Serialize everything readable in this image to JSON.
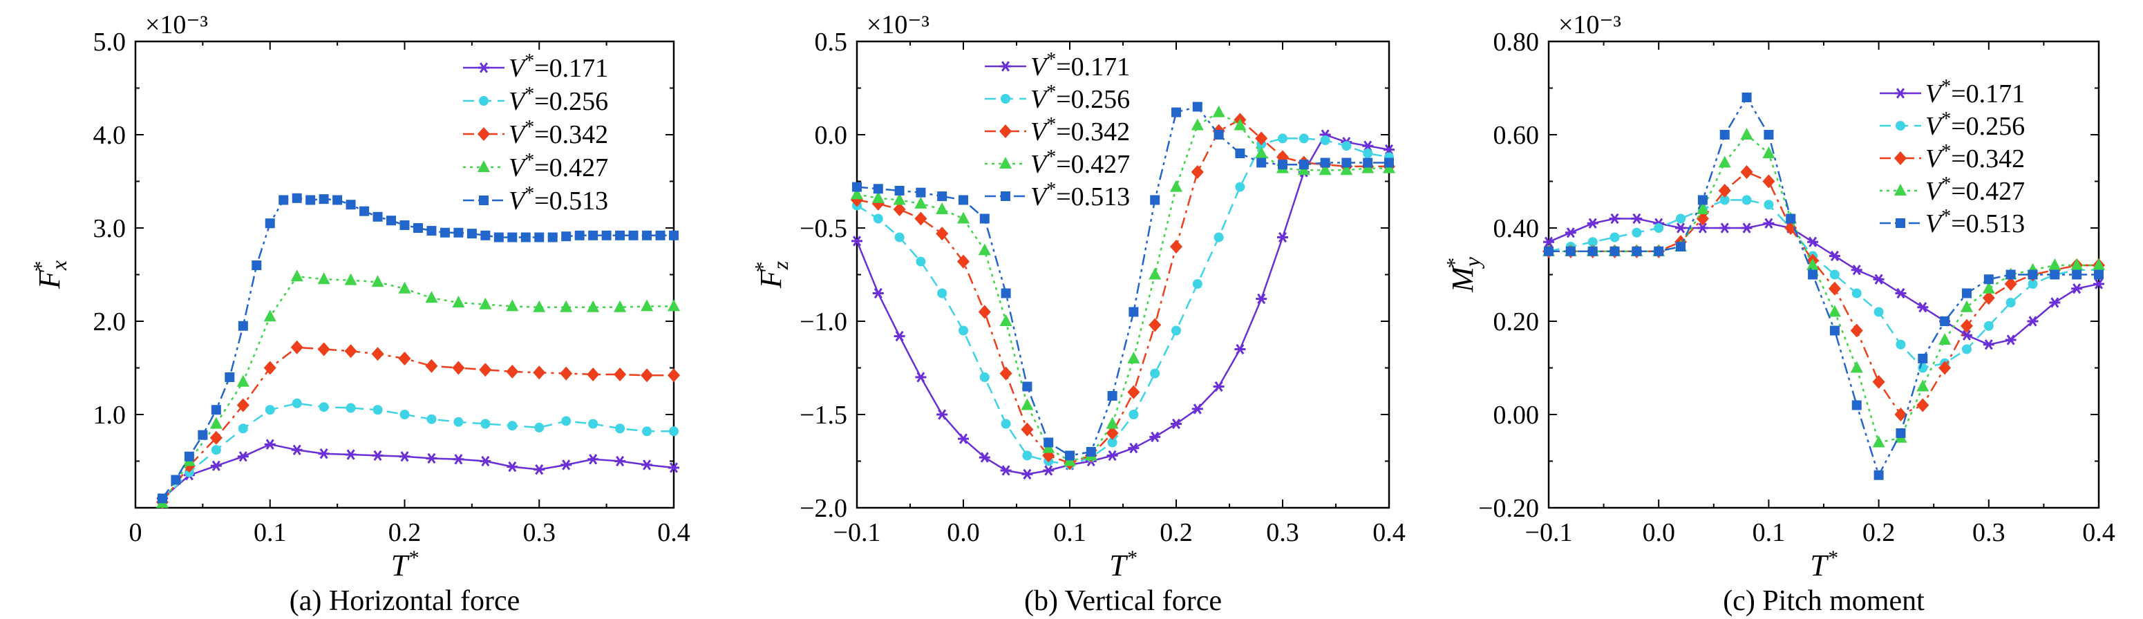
{
  "colors": {
    "V0171": "#6a2fd6",
    "V0256": "#3fd3e6",
    "V0342": "#ee3f1c",
    "V0427": "#40d44a",
    "V0513": "#2266cc"
  },
  "chart_data": [
    {
      "type": "line",
      "caption": "(a) Horizontal force",
      "ylabel": "F_x*",
      "xlabel": "T*",
      "exponent_label": "×10⁻³",
      "xlim": [
        0,
        0.4
      ],
      "ylim": [
        0,
        5.0
      ],
      "xticks": [
        "0",
        "0.1",
        "0.2",
        "0.3",
        "0.4"
      ],
      "yticks": [
        "1.0",
        "2.0",
        "3.0",
        "4.0",
        "5.0"
      ],
      "legend_position": "top-right",
      "series": [
        {
          "name": "V*=0.171",
          "marker": "star",
          "style": "solid",
          "x": [
            0.02,
            0.04,
            0.06,
            0.08,
            0.1,
            0.12,
            0.14,
            0.16,
            0.18,
            0.2,
            0.22,
            0.24,
            0.26,
            0.28,
            0.3,
            0.32,
            0.34,
            0.36,
            0.38,
            0.4
          ],
          "y": [
            0.1,
            0.35,
            0.45,
            0.55,
            0.68,
            0.62,
            0.58,
            0.57,
            0.56,
            0.55,
            0.53,
            0.52,
            0.5,
            0.44,
            0.41,
            0.46,
            0.52,
            0.5,
            0.46,
            0.43
          ]
        },
        {
          "name": "V*=0.256",
          "marker": "circle",
          "style": "dash",
          "x": [
            0.02,
            0.04,
            0.06,
            0.08,
            0.1,
            0.12,
            0.14,
            0.16,
            0.18,
            0.2,
            0.22,
            0.24,
            0.26,
            0.28,
            0.3,
            0.32,
            0.34,
            0.36,
            0.38,
            0.4
          ],
          "y": [
            0.08,
            0.38,
            0.62,
            0.85,
            1.05,
            1.12,
            1.08,
            1.07,
            1.05,
            1.0,
            0.95,
            0.92,
            0.9,
            0.88,
            0.86,
            0.93,
            0.9,
            0.85,
            0.82,
            0.82
          ]
        },
        {
          "name": "V*=0.342",
          "marker": "diamond",
          "style": "dashdot",
          "x": [
            0.02,
            0.04,
            0.06,
            0.08,
            0.1,
            0.12,
            0.14,
            0.16,
            0.18,
            0.2,
            0.22,
            0.24,
            0.26,
            0.28,
            0.3,
            0.32,
            0.34,
            0.36,
            0.38,
            0.4
          ],
          "y": [
            0.06,
            0.45,
            0.75,
            1.1,
            1.5,
            1.72,
            1.7,
            1.68,
            1.65,
            1.6,
            1.52,
            1.5,
            1.48,
            1.46,
            1.45,
            1.44,
            1.43,
            1.43,
            1.42,
            1.42
          ]
        },
        {
          "name": "V*=0.427",
          "marker": "triangle",
          "style": "dot",
          "x": [
            0.02,
            0.04,
            0.06,
            0.08,
            0.1,
            0.12,
            0.14,
            0.16,
            0.18,
            0.2,
            0.22,
            0.24,
            0.26,
            0.28,
            0.3,
            0.32,
            0.34,
            0.36,
            0.38,
            0.4
          ],
          "y": [
            0.05,
            0.5,
            0.9,
            1.35,
            2.05,
            2.48,
            2.45,
            2.44,
            2.42,
            2.35,
            2.25,
            2.2,
            2.18,
            2.16,
            2.15,
            2.15,
            2.15,
            2.15,
            2.16,
            2.16
          ]
        },
        {
          "name": "V*=0.513",
          "marker": "square",
          "style": "dashdotdot",
          "x": [
            0.02,
            0.03,
            0.04,
            0.05,
            0.06,
            0.07,
            0.08,
            0.09,
            0.1,
            0.11,
            0.12,
            0.13,
            0.14,
            0.15,
            0.16,
            0.17,
            0.18,
            0.19,
            0.2,
            0.21,
            0.22,
            0.23,
            0.24,
            0.25,
            0.26,
            0.27,
            0.28,
            0.29,
            0.3,
            0.31,
            0.32,
            0.33,
            0.34,
            0.35,
            0.36,
            0.37,
            0.38,
            0.39,
            0.4
          ],
          "y": [
            0.1,
            0.3,
            0.55,
            0.78,
            1.05,
            1.4,
            1.95,
            2.6,
            3.05,
            3.3,
            3.32,
            3.3,
            3.31,
            3.3,
            3.25,
            3.18,
            3.12,
            3.08,
            3.03,
            3.0,
            2.97,
            2.95,
            2.95,
            2.94,
            2.92,
            2.9,
            2.9,
            2.9,
            2.9,
            2.9,
            2.91,
            2.92,
            2.92,
            2.92,
            2.92,
            2.92,
            2.92,
            2.92,
            2.92
          ]
        }
      ]
    },
    {
      "type": "line",
      "caption": "(b) Vertical force",
      "ylabel": "F_z*",
      "xlabel": "T*",
      "exponent_label": "×10⁻³",
      "xlim": [
        -0.1,
        0.4
      ],
      "ylim": [
        -2.0,
        0.5
      ],
      "xticks": [
        "−0.1",
        "0.0",
        "0.1",
        "0.2",
        "0.3",
        "0.4"
      ],
      "yticks": [
        "−2.0",
        "−1.5",
        "−1.0",
        "−0.5",
        "0.0",
        "0.5"
      ],
      "legend_position": "top-left",
      "series": [
        {
          "name": "V*=0.171",
          "marker": "star",
          "style": "solid",
          "x": [
            -0.1,
            -0.08,
            -0.06,
            -0.04,
            -0.02,
            0.0,
            0.02,
            0.04,
            0.06,
            0.08,
            0.1,
            0.12,
            0.14,
            0.16,
            0.18,
            0.2,
            0.22,
            0.24,
            0.26,
            0.28,
            0.3,
            0.32,
            0.34,
            0.36,
            0.38,
            0.4
          ],
          "y": [
            -0.57,
            -0.85,
            -1.08,
            -1.3,
            -1.5,
            -1.63,
            -1.73,
            -1.8,
            -1.82,
            -1.8,
            -1.77,
            -1.75,
            -1.72,
            -1.68,
            -1.62,
            -1.55,
            -1.47,
            -1.35,
            -1.15,
            -0.88,
            -0.55,
            -0.2,
            0.0,
            -0.04,
            -0.06,
            -0.08
          ]
        },
        {
          "name": "V*=0.256",
          "marker": "circle",
          "style": "dash",
          "x": [
            -0.1,
            -0.08,
            -0.06,
            -0.04,
            -0.02,
            0.0,
            0.02,
            0.04,
            0.06,
            0.08,
            0.1,
            0.12,
            0.14,
            0.16,
            0.18,
            0.2,
            0.22,
            0.24,
            0.26,
            0.28,
            0.3,
            0.32,
            0.34,
            0.36,
            0.38,
            0.4
          ],
          "y": [
            -0.38,
            -0.45,
            -0.55,
            -0.68,
            -0.85,
            -1.05,
            -1.3,
            -1.55,
            -1.72,
            -1.75,
            -1.77,
            -1.73,
            -1.65,
            -1.5,
            -1.28,
            -1.05,
            -0.8,
            -0.55,
            -0.28,
            -0.05,
            -0.02,
            -0.02,
            -0.03,
            -0.06,
            -0.1,
            -0.12
          ]
        },
        {
          "name": "V*=0.342",
          "marker": "diamond",
          "style": "dashdot",
          "x": [
            -0.1,
            -0.08,
            -0.06,
            -0.04,
            -0.02,
            0.0,
            0.02,
            0.04,
            0.06,
            0.08,
            0.1,
            0.12,
            0.14,
            0.16,
            0.18,
            0.2,
            0.22,
            0.24,
            0.26,
            0.28,
            0.3,
            0.32,
            0.34,
            0.36,
            0.38,
            0.4
          ],
          "y": [
            -0.35,
            -0.37,
            -0.4,
            -0.45,
            -0.53,
            -0.68,
            -0.95,
            -1.28,
            -1.58,
            -1.72,
            -1.76,
            -1.72,
            -1.6,
            -1.38,
            -1.02,
            -0.6,
            -0.2,
            0.02,
            0.08,
            -0.02,
            -0.12,
            -0.15,
            -0.16,
            -0.17,
            -0.17,
            -0.17
          ]
        },
        {
          "name": "V*=0.427",
          "marker": "triangle",
          "style": "dot",
          "x": [
            -0.1,
            -0.08,
            -0.06,
            -0.04,
            -0.02,
            0.0,
            0.02,
            0.04,
            0.06,
            0.08,
            0.1,
            0.12,
            0.14,
            0.16,
            0.18,
            0.2,
            0.22,
            0.24,
            0.26,
            0.28,
            0.3,
            0.32,
            0.34,
            0.36,
            0.38,
            0.4
          ],
          "y": [
            -0.32,
            -0.34,
            -0.35,
            -0.37,
            -0.4,
            -0.45,
            -0.62,
            -1.0,
            -1.45,
            -1.68,
            -1.75,
            -1.72,
            -1.55,
            -1.2,
            -0.75,
            -0.28,
            0.05,
            0.12,
            0.05,
            -0.1,
            -0.18,
            -0.19,
            -0.19,
            -0.19,
            -0.18,
            -0.18
          ]
        },
        {
          "name": "V*=0.513",
          "marker": "square",
          "style": "dashdotdot",
          "x": [
            -0.1,
            -0.08,
            -0.06,
            -0.04,
            -0.02,
            0.0,
            0.02,
            0.04,
            0.06,
            0.08,
            0.1,
            0.12,
            0.14,
            0.16,
            0.18,
            0.2,
            0.22,
            0.24,
            0.26,
            0.28,
            0.3,
            0.32,
            0.34,
            0.36,
            0.38,
            0.4
          ],
          "y": [
            -0.28,
            -0.29,
            -0.3,
            -0.31,
            -0.33,
            -0.35,
            -0.45,
            -0.85,
            -1.35,
            -1.65,
            -1.72,
            -1.7,
            -1.4,
            -0.95,
            -0.35,
            0.12,
            0.15,
            0.0,
            -0.1,
            -0.15,
            -0.16,
            -0.16,
            -0.15,
            -0.15,
            -0.15,
            -0.15
          ]
        }
      ]
    },
    {
      "type": "line",
      "caption": "(c) Pitch moment",
      "ylabel": "M_y*",
      "xlabel": "T*",
      "exponent_label": "×10⁻³",
      "xlim": [
        -0.1,
        0.4
      ],
      "ylim": [
        -0.2,
        0.8
      ],
      "xticks": [
        "−0.1",
        "0.0",
        "0.1",
        "0.2",
        "0.3",
        "0.4"
      ],
      "yticks": [
        "−0.20",
        "0.00",
        "0.20",
        "0.40",
        "0.60",
        "0.80"
      ],
      "legend_position": "top-right",
      "series": [
        {
          "name": "V*=0.171",
          "marker": "star",
          "style": "solid",
          "x": [
            -0.1,
            -0.08,
            -0.06,
            -0.04,
            -0.02,
            0.0,
            0.02,
            0.04,
            0.06,
            0.08,
            0.1,
            0.12,
            0.14,
            0.16,
            0.18,
            0.2,
            0.22,
            0.24,
            0.26,
            0.28,
            0.3,
            0.32,
            0.34,
            0.36,
            0.38,
            0.4
          ],
          "y": [
            0.37,
            0.39,
            0.41,
            0.42,
            0.42,
            0.41,
            0.4,
            0.4,
            0.4,
            0.4,
            0.41,
            0.4,
            0.37,
            0.34,
            0.31,
            0.29,
            0.26,
            0.23,
            0.2,
            0.17,
            0.15,
            0.16,
            0.2,
            0.24,
            0.27,
            0.28
          ]
        },
        {
          "name": "V*=0.256",
          "marker": "circle",
          "style": "dash",
          "x": [
            -0.1,
            -0.08,
            -0.06,
            -0.04,
            -0.02,
            0.0,
            0.02,
            0.04,
            0.06,
            0.08,
            0.1,
            0.12,
            0.14,
            0.16,
            0.18,
            0.2,
            0.22,
            0.24,
            0.26,
            0.28,
            0.3,
            0.32,
            0.34,
            0.36,
            0.38,
            0.4
          ],
          "y": [
            0.35,
            0.36,
            0.37,
            0.38,
            0.39,
            0.4,
            0.42,
            0.44,
            0.46,
            0.46,
            0.45,
            0.4,
            0.34,
            0.3,
            0.26,
            0.22,
            0.15,
            0.1,
            0.11,
            0.14,
            0.19,
            0.24,
            0.28,
            0.3,
            0.31,
            0.31
          ]
        },
        {
          "name": "V*=0.342",
          "marker": "diamond",
          "style": "dashdot",
          "x": [
            -0.1,
            -0.08,
            -0.06,
            -0.04,
            -0.02,
            0.0,
            0.02,
            0.04,
            0.06,
            0.08,
            0.1,
            0.12,
            0.14,
            0.16,
            0.18,
            0.2,
            0.22,
            0.24,
            0.26,
            0.28,
            0.3,
            0.32,
            0.34,
            0.36,
            0.38,
            0.4
          ],
          "y": [
            0.35,
            0.35,
            0.35,
            0.35,
            0.35,
            0.35,
            0.37,
            0.42,
            0.48,
            0.52,
            0.5,
            0.4,
            0.33,
            0.27,
            0.18,
            0.07,
            0.0,
            0.02,
            0.1,
            0.19,
            0.25,
            0.28,
            0.3,
            0.31,
            0.32,
            0.32
          ]
        },
        {
          "name": "V*=0.427",
          "marker": "triangle",
          "style": "dot",
          "x": [
            -0.1,
            -0.08,
            -0.06,
            -0.04,
            -0.02,
            0.0,
            0.02,
            0.04,
            0.06,
            0.08,
            0.1,
            0.12,
            0.14,
            0.16,
            0.18,
            0.2,
            0.22,
            0.24,
            0.26,
            0.28,
            0.3,
            0.32,
            0.34,
            0.36,
            0.38,
            0.4
          ],
          "y": [
            0.35,
            0.35,
            0.35,
            0.35,
            0.35,
            0.35,
            0.36,
            0.44,
            0.54,
            0.6,
            0.56,
            0.42,
            0.32,
            0.22,
            0.1,
            -0.06,
            -0.05,
            0.06,
            0.16,
            0.23,
            0.27,
            0.3,
            0.31,
            0.32,
            0.32,
            0.32
          ]
        },
        {
          "name": "V*=0.513",
          "marker": "square",
          "style": "dashdotdot",
          "x": [
            -0.1,
            -0.08,
            -0.06,
            -0.04,
            -0.02,
            0.0,
            0.02,
            0.04,
            0.06,
            0.08,
            0.1,
            0.12,
            0.14,
            0.16,
            0.18,
            0.2,
            0.22,
            0.24,
            0.26,
            0.28,
            0.3,
            0.32,
            0.34,
            0.36,
            0.38,
            0.4
          ],
          "y": [
            0.35,
            0.35,
            0.35,
            0.35,
            0.35,
            0.35,
            0.36,
            0.46,
            0.6,
            0.68,
            0.6,
            0.42,
            0.3,
            0.18,
            0.02,
            -0.13,
            -0.04,
            0.12,
            0.2,
            0.26,
            0.29,
            0.3,
            0.3,
            0.3,
            0.3,
            0.3
          ]
        }
      ]
    }
  ]
}
